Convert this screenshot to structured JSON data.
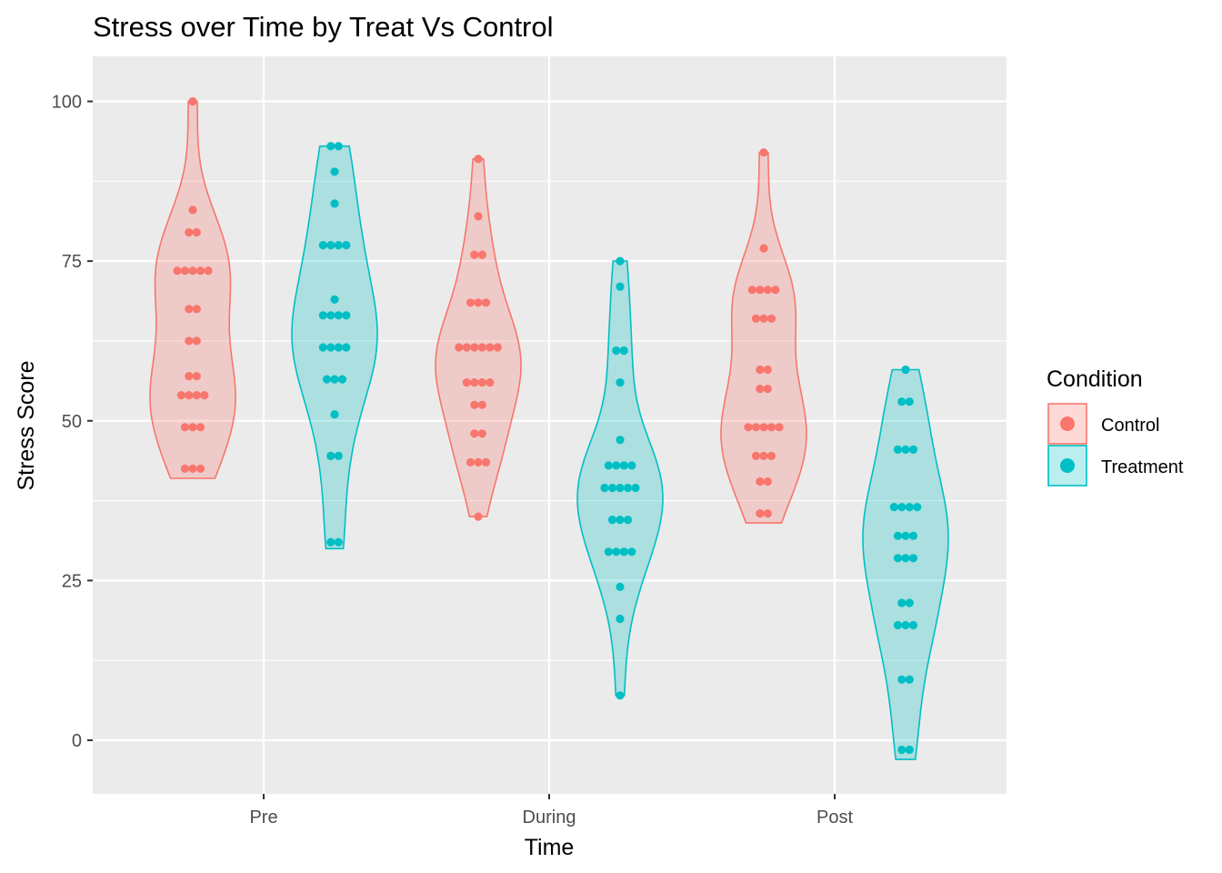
{
  "chart_data": {
    "type": "violin",
    "title": "Stress over Time by Treat Vs Control",
    "xlabel": "Time",
    "ylabel": "Stress Score",
    "categories": [
      "Pre",
      "During",
      "Post"
    ],
    "ylim": [
      -7,
      108
    ],
    "y_ticks": [
      0,
      25,
      50,
      75,
      100
    ],
    "grid": true,
    "legend": {
      "title": "Condition",
      "position": "right",
      "entries": [
        "Control",
        "Treatment"
      ]
    },
    "series": [
      {
        "name": "Control",
        "color": "#F8766D",
        "groups": [
          {
            "category": "Pre",
            "min": 41,
            "max": 100,
            "values": [
              100,
              83,
              79.5,
              79.5,
              73.5,
              73.5,
              73.5,
              73.5,
              73.5,
              67.5,
              67.5,
              62.5,
              62.5,
              57,
              57,
              54,
              54,
              54,
              54,
              49,
              49,
              49,
              42.5,
              42.5,
              42.5
            ]
          },
          {
            "category": "During",
            "min": 35,
            "max": 91,
            "values": [
              91,
              82,
              76,
              76,
              68.5,
              68.5,
              68.5,
              61.5,
              61.5,
              61.5,
              61.5,
              61.5,
              61.5,
              56,
              56,
              56,
              56,
              52.5,
              52.5,
              48,
              48,
              43.5,
              43.5,
              43.5,
              35
            ]
          },
          {
            "category": "Post",
            "min": 34,
            "max": 92,
            "values": [
              92,
              77,
              70.5,
              70.5,
              70.5,
              70.5,
              66,
              66,
              66,
              58,
              58,
              55,
              55,
              49,
              49,
              49,
              49,
              49,
              44.5,
              44.5,
              44.5,
              40.5,
              40.5,
              35.5,
              35.5
            ]
          }
        ]
      },
      {
        "name": "Treatment",
        "color": "#00BFC4",
        "groups": [
          {
            "category": "Pre",
            "min": 30,
            "max": 93,
            "values": [
              93,
              93,
              89,
              84,
              77.5,
              77.5,
              77.5,
              77.5,
              69,
              66.5,
              66.5,
              66.5,
              66.5,
              61.5,
              61.5,
              61.5,
              61.5,
              56.5,
              56.5,
              56.5,
              51,
              44.5,
              44.5,
              31,
              31
            ]
          },
          {
            "category": "During",
            "min": 7,
            "max": 75,
            "values": [
              75,
              71,
              61,
              61,
              56,
              47,
              43,
              43,
              43,
              43,
              39.5,
              39.5,
              39.5,
              39.5,
              39.5,
              34.5,
              34.5,
              34.5,
              29.5,
              29.5,
              29.5,
              29.5,
              24,
              19,
              7
            ]
          },
          {
            "category": "Post",
            "min": -3,
            "max": 58,
            "values": [
              58,
              53,
              53,
              45.5,
              45.5,
              45.5,
              36.5,
              36.5,
              36.5,
              36.5,
              32,
              32,
              32,
              28.5,
              28.5,
              28.5,
              21.5,
              21.5,
              18,
              18,
              18,
              9.5,
              9.5,
              -1.5,
              -1.5
            ]
          }
        ]
      }
    ]
  }
}
